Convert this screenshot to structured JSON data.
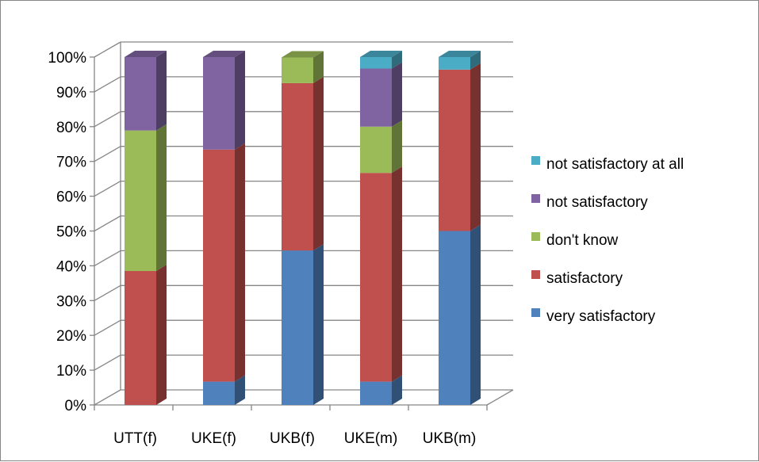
{
  "chart_data": {
    "type": "bar",
    "stacked": true,
    "three_d": true,
    "percent_stacked": true,
    "categories": [
      "UTT(f)",
      "UKE(f)",
      "UKB(f)",
      "UKE(m)",
      "UKB(m)"
    ],
    "series": [
      {
        "name": "very satisfactory",
        "color": "#4F81BD",
        "values": [
          0,
          6.7,
          44.4,
          6.7,
          50
        ]
      },
      {
        "name": "satisfactory",
        "color": "#C0504D",
        "values": [
          38.5,
          66.7,
          48.1,
          60,
          46.4
        ]
      },
      {
        "name": "don't know",
        "color": "#9BBB59",
        "values": [
          40.4,
          0,
          7.4,
          13.3,
          0
        ]
      },
      {
        "name": "not satisfactory",
        "color": "#8064A2",
        "values": [
          21.1,
          26.6,
          0,
          16.7,
          0
        ]
      },
      {
        "name": "not satisfactory at all",
        "color": "#4BACC6",
        "values": [
          0,
          0,
          0,
          3.3,
          3.6
        ]
      }
    ],
    "y_ticks": [
      "0%",
      "10%",
      "20%",
      "30%",
      "40%",
      "50%",
      "60%",
      "70%",
      "80%",
      "90%",
      "100%"
    ],
    "ylim": [
      0,
      100
    ],
    "grid": true,
    "legend_position": "right",
    "legend_order": [
      "not satisfactory at all",
      "not satisfactory",
      "don't know",
      "satisfactory",
      "very satisfactory"
    ],
    "title": "",
    "xlabel": "",
    "ylabel": ""
  }
}
